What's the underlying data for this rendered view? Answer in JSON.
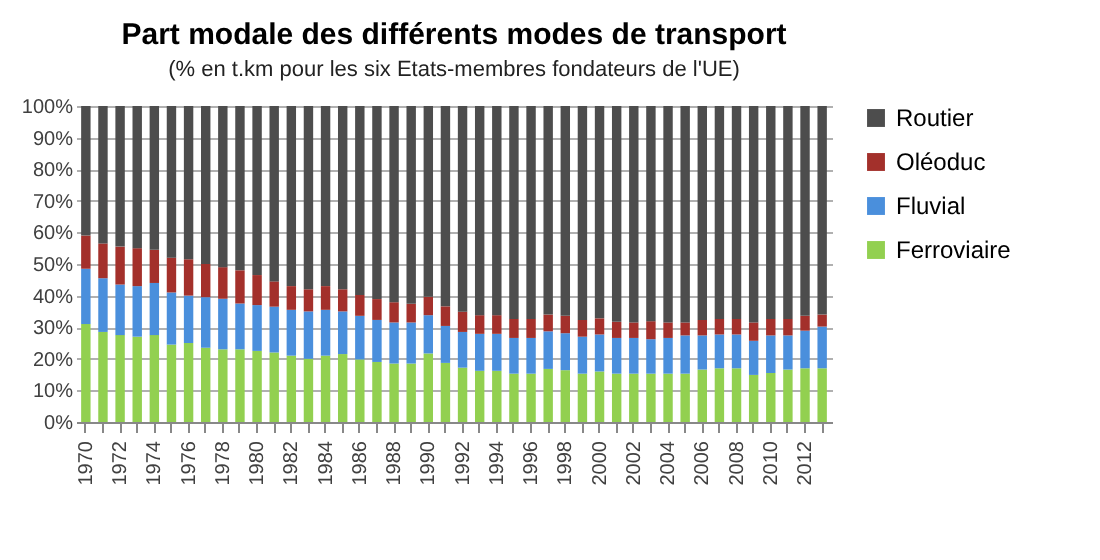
{
  "chart_data": {
    "type": "bar",
    "title": "Part modale des différents modes de transport",
    "subtitle": "(% en t.km pour les six Etats-membres fondateurs de l'UE)",
    "categories": [
      "1970",
      null,
      "1972",
      null,
      "1974",
      null,
      "1976",
      null,
      "1978",
      null,
      "1980",
      null,
      "1982",
      null,
      "1984",
      null,
      "1986",
      null,
      "1988",
      null,
      "1990",
      null,
      "1992",
      null,
      "1994",
      null,
      "1996",
      null,
      "1998",
      null,
      "2000",
      null,
      "2002",
      null,
      "2004",
      null,
      "2006",
      null,
      "2008",
      null,
      "2010",
      null,
      "2012",
      null
    ],
    "stacked": true,
    "ylim": [
      0,
      100
    ],
    "yticks": [
      {
        "value": 0,
        "label": "0%"
      },
      {
        "value": 10,
        "label": "10%"
      },
      {
        "value": 20,
        "label": "20%"
      },
      {
        "value": 30,
        "label": "30%"
      },
      {
        "value": 40,
        "label": "40%"
      },
      {
        "value": 50,
        "label": "50%"
      },
      {
        "value": 60,
        "label": "60%"
      },
      {
        "value": 70,
        "label": "70%"
      },
      {
        "value": 80,
        "label": "80%"
      },
      {
        "value": 90,
        "label": "90%"
      },
      {
        "value": 100,
        "label": "100%"
      }
    ],
    "grid": "y",
    "legend": "right",
    "series": [
      {
        "name": "Ferroviaire",
        "color": "#92d050",
        "values": [
          31,
          28.5,
          27.5,
          27,
          27.5,
          24.5,
          25,
          23.5,
          23,
          23,
          22.5,
          22,
          21,
          20,
          21,
          21.5,
          19.8,
          19,
          18.5,
          18.5,
          21.7,
          18.7,
          17.2,
          16.2,
          16.2,
          15.3,
          15.3,
          16.8,
          16.4,
          15.3,
          16,
          15.3,
          15.3,
          15.3,
          15.3,
          15.3,
          16.6,
          17,
          17,
          14.9,
          15.5,
          16.6,
          17,
          17
        ]
      },
      {
        "name": "Fluvial",
        "color": "#4a8fdc",
        "values": [
          17.5,
          17,
          16,
          16,
          16.5,
          16.5,
          15,
          16,
          16,
          14.5,
          14.5,
          14.5,
          14.5,
          15,
          14.5,
          13.5,
          13.8,
          13.3,
          13,
          13,
          12.1,
          11.7,
          11.3,
          11.7,
          11.7,
          11.3,
          11.3,
          11.9,
          11.7,
          11.7,
          11.7,
          11.3,
          11.3,
          10.9,
          11.3,
          12.1,
          10.8,
          10.7,
          10.7,
          10.8,
          11.9,
          10.8,
          11.9,
          13.2
        ]
      },
      {
        "name": "Oléoduc",
        "color": "#a3302b",
        "values": [
          10.5,
          11,
          12,
          12,
          10.5,
          11,
          11.5,
          10.5,
          10,
          10.5,
          9.5,
          8,
          7.5,
          7,
          7.5,
          7,
          6.6,
          6.6,
          6.4,
          5.9,
          5.8,
          6.2,
          6.4,
          5.9,
          5.9,
          6,
          6,
          5.3,
          5.5,
          5.3,
          5.1,
          5.1,
          4.9,
          5.7,
          4.9,
          4.1,
          4.9,
          4.9,
          4.9,
          5.8,
          5.2,
          5.2,
          4.7,
          3.8
        ]
      },
      {
        "name": "Routier",
        "color": "#4d4d4d",
        "values": [
          41,
          43.5,
          44.5,
          45,
          45.5,
          48,
          48.5,
          50,
          51,
          52,
          53.5,
          55.5,
          57,
          58,
          57,
          58,
          59.8,
          61.1,
          62.1,
          62.6,
          60.4,
          63.4,
          65.1,
          66.2,
          66.2,
          67.4,
          67.4,
          66,
          66.4,
          67.7,
          67.2,
          68.3,
          68.5,
          68.1,
          68.5,
          68.5,
          67.7,
          67.4,
          67.4,
          68.5,
          67.4,
          67.4,
          66.4,
          66
        ]
      }
    ]
  }
}
